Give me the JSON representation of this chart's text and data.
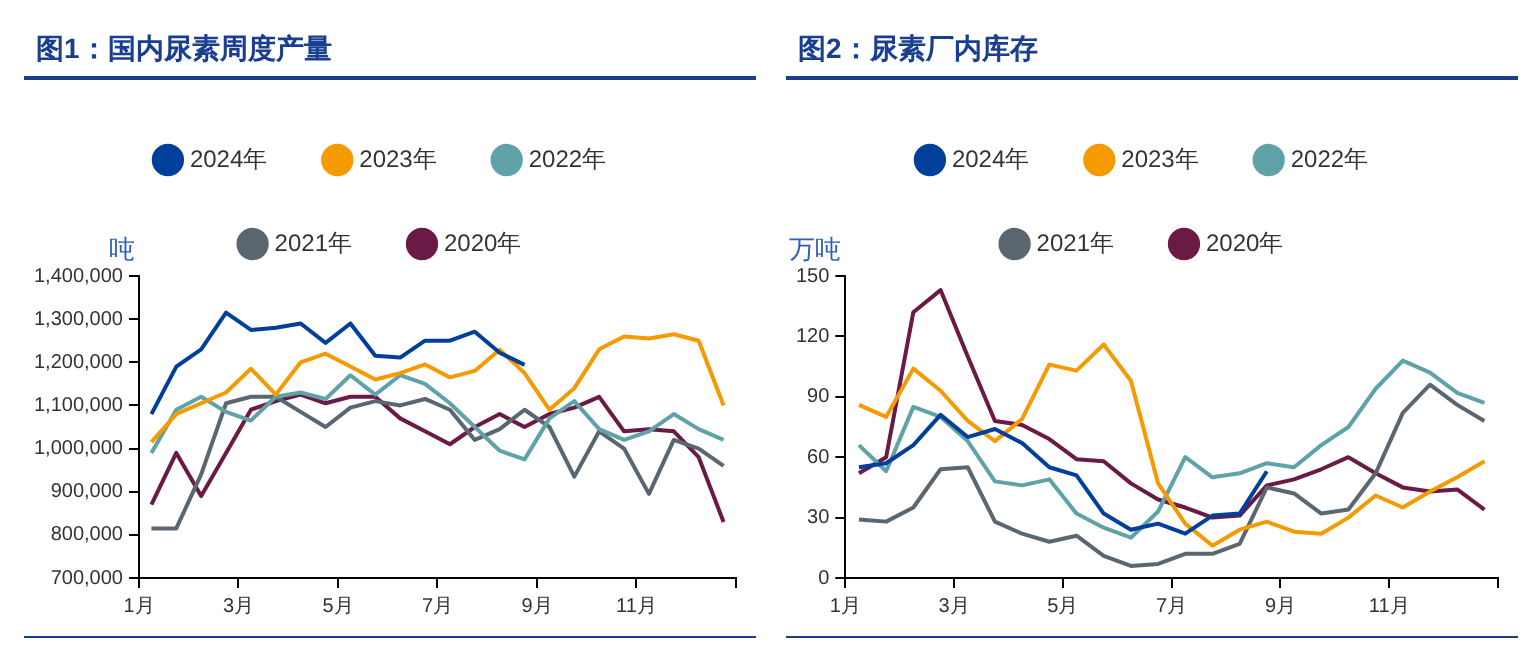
{
  "chart_data": [
    {
      "type": "line",
      "title": "图1：国内尿素周度产量",
      "ylabel": "吨",
      "legend": "top",
      "marker": "none",
      "grid": false,
      "x": [
        1.25,
        1.75,
        2.25,
        2.75,
        3.25,
        3.75,
        4.25,
        4.75,
        5.25,
        5.75,
        6.25,
        6.75,
        7.25,
        7.75,
        8.25,
        8.75,
        9.25,
        9.75,
        10.25,
        10.75,
        11.25,
        11.75,
        12.25,
        12.75
      ],
      "xlim": [
        1,
        13
      ],
      "xticks": [
        {
          "value": 1,
          "label": "1月"
        },
        {
          "value": 3,
          "label": "3月"
        },
        {
          "value": 5,
          "label": "5月"
        },
        {
          "value": 7,
          "label": "7月"
        },
        {
          "value": 9,
          "label": "9月"
        },
        {
          "value": 11,
          "label": "11月"
        },
        {
          "value": 13,
          "label": null
        }
      ],
      "ylim": [
        700000,
        1400000
      ],
      "yticks": [
        {
          "value": 700000,
          "label": "700,000"
        },
        {
          "value": 800000,
          "label": "800,000"
        },
        {
          "value": 900000,
          "label": "900,000"
        },
        {
          "value": 1000000,
          "label": "1,000,000"
        },
        {
          "value": 1100000,
          "label": "1,100,000"
        },
        {
          "value": 1200000,
          "label": "1,200,000"
        },
        {
          "value": 1300000,
          "label": "1,300,000"
        },
        {
          "value": 1400000,
          "label": "1,400,000"
        }
      ],
      "series": [
        {
          "name": "2024年",
          "color": "#003f9a",
          "values": [
            1080000,
            1190000,
            1230000,
            1315000,
            1275000,
            1280000,
            1290000,
            1245000,
            1290000,
            1215000,
            1211000,
            1250000,
            1250000,
            1271000,
            1222000,
            1194000,
            null,
            null,
            null,
            null,
            null,
            null,
            null,
            null
          ]
        },
        {
          "name": "2023年",
          "color": "#f59a00",
          "values": [
            1015000,
            1080000,
            1105000,
            1130000,
            1185000,
            1125000,
            1200000,
            1220000,
            1190000,
            1160000,
            1175000,
            1195000,
            1165000,
            1180000,
            1229000,
            1175000,
            1090000,
            1140000,
            1230000,
            1260000,
            1255000,
            1265000,
            1250000,
            1100000
          ]
        },
        {
          "name": "2022年",
          "color": "#5fa3a8",
          "values": [
            990000,
            1090000,
            1120000,
            1085000,
            1065000,
            1120000,
            1130000,
            1115000,
            1170000,
            1125000,
            1170000,
            1150000,
            1105000,
            1050000,
            995000,
            975000,
            1070000,
            1110000,
            1045000,
            1020000,
            1040000,
            1080000,
            1045000,
            1020000
          ]
        },
        {
          "name": "2021年",
          "color": "#5a6670",
          "values": [
            815000,
            815000,
            940000,
            1105000,
            1120000,
            1120000,
            1085000,
            1050000,
            1095000,
            1110000,
            1100000,
            1115000,
            1090000,
            1020000,
            1045000,
            1090000,
            1050000,
            935000,
            1040000,
            1000000,
            895000,
            1020000,
            1000000,
            960000
          ]
        },
        {
          "name": "2020年",
          "color": "#6b1a45",
          "values": [
            870000,
            990000,
            890000,
            990000,
            1090000,
            1110000,
            1125000,
            1105000,
            1120000,
            1120000,
            1070000,
            1040000,
            1010000,
            1050000,
            1080000,
            1050000,
            1080000,
            1095000,
            1120000,
            1040000,
            1045000,
            1040000,
            980000,
            830000
          ]
        }
      ]
    },
    {
      "type": "line",
      "title": "图2：尿素厂内库存",
      "ylabel": "万吨",
      "legend": "top",
      "marker": "none",
      "grid": false,
      "x": [
        1.25,
        1.75,
        2.25,
        2.75,
        3.25,
        3.75,
        4.25,
        4.75,
        5.25,
        5.75,
        6.25,
        6.75,
        7.25,
        7.75,
        8.25,
        8.75,
        9.25,
        9.75,
        10.25,
        10.75,
        11.25,
        11.75,
        12.25,
        12.75
      ],
      "xlim": [
        1,
        13
      ],
      "xticks": [
        {
          "value": 1,
          "label": "1月"
        },
        {
          "value": 3,
          "label": "3月"
        },
        {
          "value": 5,
          "label": "5月"
        },
        {
          "value": 7,
          "label": "7月"
        },
        {
          "value": 9,
          "label": "9月"
        },
        {
          "value": 11,
          "label": "11月"
        },
        {
          "value": 13,
          "label": null
        }
      ],
      "ylim": [
        0,
        150
      ],
      "yticks": [
        0,
        30,
        60,
        90,
        120,
        150
      ],
      "series": [
        {
          "name": "2024年",
          "color": "#003f9a",
          "values": [
            55,
            57,
            66,
            81,
            70,
            74,
            67,
            55,
            51,
            32,
            24,
            27,
            22,
            31,
            32,
            53,
            null,
            null,
            null,
            null,
            null,
            null,
            null,
            null
          ]
        },
        {
          "name": "2023年",
          "color": "#f59a00",
          "values": [
            86,
            80,
            104,
            93,
            78,
            68,
            79,
            106,
            103,
            116,
            98,
            47,
            27,
            16,
            24,
            28,
            23,
            22,
            30,
            41,
            35,
            43,
            50,
            58
          ]
        },
        {
          "name": "2022年",
          "color": "#5fa3a8",
          "values": [
            66,
            53,
            85,
            80,
            68,
            48,
            46,
            49,
            32,
            25,
            20,
            33,
            60,
            50,
            52,
            57,
            55,
            66,
            75,
            94,
            108,
            102,
            92,
            87
          ]
        },
        {
          "name": "2021年",
          "color": "#5a6670",
          "values": [
            29,
            28,
            35,
            54,
            55,
            28,
            22,
            18,
            21,
            11,
            6,
            7,
            12,
            12,
            17,
            45,
            42,
            32,
            34,
            52,
            82,
            96,
            86,
            78
          ]
        },
        {
          "name": "2020年",
          "color": "#6b1a45",
          "values": [
            52,
            60,
            132,
            143,
            110,
            78,
            76,
            69,
            59,
            58,
            47,
            39,
            35,
            30,
            31,
            46,
            49,
            54,
            60,
            52,
            45,
            43,
            44,
            34
          ]
        }
      ]
    }
  ]
}
